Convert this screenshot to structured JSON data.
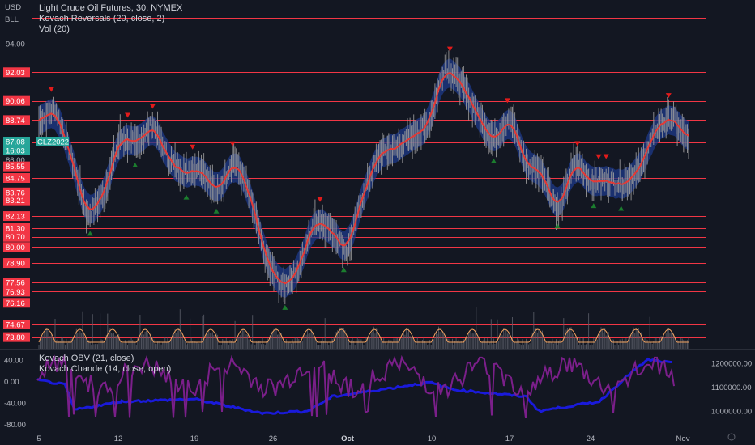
{
  "header": {
    "currency": "USD",
    "unit": "BLL",
    "title": "Light Crude Oil Futures, 30, NYMEX",
    "indicators": [
      "Kovach Reversals (20, close, 2)",
      "Vol (20)"
    ],
    "lower_indicators": [
      "Kovach OBV (21, close)",
      "Kovach Chande (14, close, open)"
    ]
  },
  "colors": {
    "background": "#131722",
    "level_line": "#f23645",
    "level_badge": "#f23645",
    "price_badge": "#26a69a",
    "band": "#1e3a8a",
    "mean_line": "#e53935",
    "candles": "#9e9e9e",
    "up_marker": "#1b7d2e",
    "down_marker": "#e21b1b",
    "volume": "#5d606b",
    "vol_curve": "#f4a460",
    "obv_line": "#1a1adb",
    "chande_line": "#7b1f8a"
  },
  "chart_data": [
    {
      "type": "line",
      "name": "price-panel",
      "ylim": [
        73.0,
        96.0
      ],
      "y_ticks": [
        "94.00",
        "92.03",
        "90.06",
        "88.74",
        "87.21",
        "86.00",
        "85.55",
        "84.75",
        "83.76",
        "83.21",
        "82.13",
        "81.30",
        "80.70",
        "80.00",
        "78.90",
        "77.56",
        "76.93",
        "76.16",
        "74.67",
        "73.80"
      ],
      "level_lines": [
        95.8,
        92.03,
        90.06,
        88.74,
        87.21,
        85.55,
        84.75,
        83.76,
        83.21,
        82.13,
        81.3,
        80.7,
        80.0,
        78.9,
        77.56,
        76.93,
        76.16,
        74.67,
        73.8
      ],
      "last_price": {
        "label": "87.08",
        "symbol": "CLZ2022",
        "extra": "16:03"
      },
      "x_ticks": [
        "5",
        "12",
        "19",
        "26",
        "Oct",
        "10",
        "17",
        "24",
        "Nov"
      ],
      "approx_close_path": [
        {
          "x": "5",
          "y": 88.6
        },
        {
          "x": "6",
          "y": 89.6
        },
        {
          "x": "7",
          "y": 86.2
        },
        {
          "x": "8",
          "y": 82.1
        },
        {
          "x": "9",
          "y": 83.6
        },
        {
          "x": "12",
          "y": 87.6
        },
        {
          "x": "13",
          "y": 87.0
        },
        {
          "x": "14",
          "y": 88.5
        },
        {
          "x": "15",
          "y": 86.0
        },
        {
          "x": "16",
          "y": 85.1
        },
        {
          "x": "19",
          "y": 85.6
        },
        {
          "x": "20",
          "y": 83.6
        },
        {
          "x": "21",
          "y": 86.2
        },
        {
          "x": "22",
          "y": 83.5
        },
        {
          "x": "23",
          "y": 79.0
        },
        {
          "x": "26",
          "y": 77.2
        },
        {
          "x": "27",
          "y": 78.5
        },
        {
          "x": "28",
          "y": 82.0
        },
        {
          "x": "29",
          "y": 81.3
        },
        {
          "x": "30",
          "y": 79.6
        },
        {
          "x": "Oct",
          "y": 83.8
        },
        {
          "x": "3",
          "y": 86.5
        },
        {
          "x": "4",
          "y": 86.8
        },
        {
          "x": "5",
          "y": 87.6
        },
        {
          "x": "6",
          "y": 88.4
        },
        {
          "x": "7",
          "y": 92.6
        },
        {
          "x": "10",
          "y": 91.2
        },
        {
          "x": "11",
          "y": 89.2
        },
        {
          "x": "12",
          "y": 87.3
        },
        {
          "x": "13",
          "y": 89.1
        },
        {
          "x": "14",
          "y": 85.6
        },
        {
          "x": "17",
          "y": 85.3
        },
        {
          "x": "18",
          "y": 82.3
        },
        {
          "x": "19",
          "y": 85.9
        },
        {
          "x": "20",
          "y": 84.5
        },
        {
          "x": "21",
          "y": 84.6
        },
        {
          "x": "24",
          "y": 84.4
        },
        {
          "x": "25",
          "y": 85.3
        },
        {
          "x": "26",
          "y": 88.2
        },
        {
          "x": "27",
          "y": 89.0
        },
        {
          "x": "28",
          "y": 87.1
        }
      ]
    },
    {
      "type": "line",
      "name": "oscillator-panel",
      "ylim": [
        -90,
        60
      ],
      "y_ticks": [
        "40.00",
        "0.00",
        "-40.00",
        "-80.00"
      ],
      "right_ticks": [
        "1200000.00",
        "1100000.00",
        "1000000.00"
      ],
      "series": [
        {
          "name": "Kovach OBV (21, close)",
          "axis": "right"
        },
        {
          "name": "Kovach Chande (14, close, open)",
          "axis": "left"
        }
      ]
    }
  ]
}
